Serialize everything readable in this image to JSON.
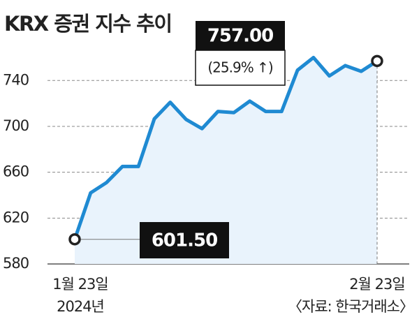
{
  "chart_data": {
    "type": "line",
    "title": "KRX 증권 지수 추이",
    "categories": [
      "1월 23일",
      null,
      null,
      null,
      null,
      null,
      null,
      null,
      null,
      null,
      null,
      null,
      null,
      null,
      null,
      null,
      null,
      null,
      null,
      "2월 23일"
    ],
    "x_sublabel": "2024년",
    "source": "〈자료: 한국거래소〉",
    "series": [
      {
        "name": "KRX 증권",
        "color": "#1f8ad2",
        "values": [
          601.5,
          642,
          651,
          665,
          665,
          706.5,
          721,
          706,
          698,
          713,
          712,
          722,
          713,
          713,
          749,
          760,
          744,
          753,
          748,
          757
        ],
        "value_labels": [
          "601.50",
          null,
          null,
          null,
          null,
          null,
          null,
          null,
          null,
          null,
          null,
          null,
          null,
          null,
          null,
          null,
          null,
          null,
          null,
          "757.00"
        ]
      }
    ],
    "annotation": "(25.9% ↑)",
    "ylim": [
      580,
      770
    ],
    "yticks": [
      580,
      620,
      660,
      700,
      740
    ],
    "grid": true
  }
}
